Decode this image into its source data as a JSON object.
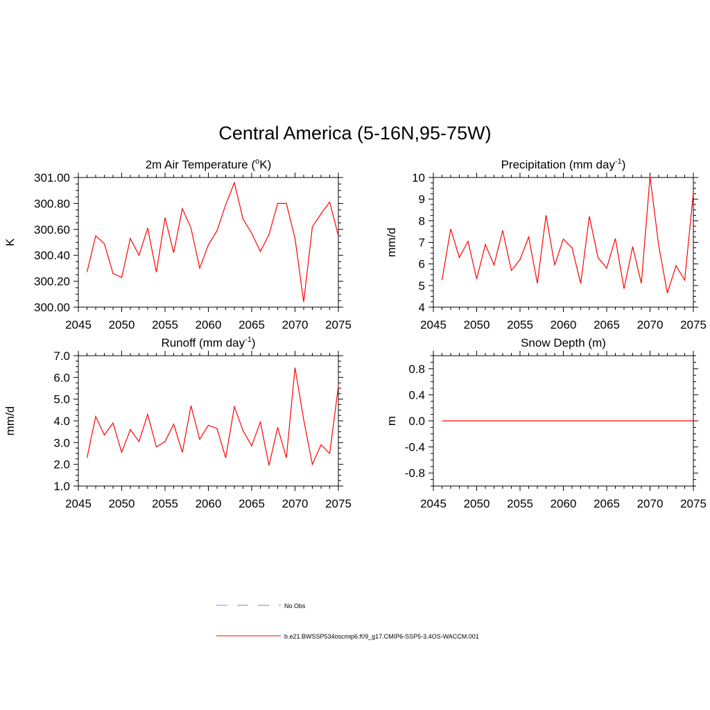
{
  "figure_title": "Central America (5-16N,95-75W)",
  "colors": {
    "model_line": "#ff0000",
    "obs_line": "#9999dd",
    "axis": "#000000"
  },
  "legend": [
    {
      "label": "No Obs",
      "style": "dashed",
      "color": "#9999dd"
    },
    {
      "label": "b.e21.BWSSP534oscmip6.f09_g17.CMIP6-SSP5-3.4OS-WACCM.001",
      "style": "solid",
      "color": "#ff0000"
    }
  ],
  "chart_data": [
    {
      "type": "line",
      "title": "2m Air Temperature",
      "title_unit": "(",
      "title_sup": "o",
      "title_tail": "K)",
      "xlabel": "",
      "ylabel": "K",
      "xlim": [
        2045,
        2075
      ],
      "ylim": [
        300.0,
        301.0
      ],
      "x_ticks": [
        2045,
        2050,
        2055,
        2060,
        2065,
        2070,
        2075
      ],
      "y_ticks": [
        300.0,
        300.2,
        300.4,
        300.6,
        300.8,
        301.0
      ],
      "y_tick_labels": [
        "300.00",
        "300.20",
        "300.40",
        "300.60",
        "300.80",
        "301.00"
      ],
      "x": [
        2046,
        2047,
        2048,
        2049,
        2050,
        2051,
        2052,
        2053,
        2054,
        2055,
        2056,
        2057,
        2058,
        2059,
        2060,
        2061,
        2062,
        2063,
        2064,
        2065,
        2066,
        2067,
        2068,
        2069,
        2070,
        2071,
        2072,
        2073,
        2074,
        2075
      ],
      "series": [
        {
          "name": "b.e21.BWSSP534oscmip6.f09_g17.CMIP6-SSP5-3.4OS-WACCM.001",
          "values": [
            300.27,
            300.55,
            300.49,
            300.26,
            300.23,
            300.53,
            300.4,
            300.61,
            300.27,
            300.69,
            300.42,
            300.76,
            300.61,
            300.3,
            300.48,
            300.59,
            300.79,
            300.96,
            300.68,
            300.57,
            300.43,
            300.56,
            300.8,
            300.8,
            300.53,
            300.04,
            300.62,
            300.72,
            300.81,
            300.55
          ]
        }
      ]
    },
    {
      "type": "line",
      "title": "Precipitation",
      "title_unit": "(mm day",
      "title_sup": "-1",
      "title_tail": ")",
      "xlabel": "",
      "ylabel": "mm/d",
      "xlim": [
        2045,
        2075
      ],
      "ylim": [
        4,
        10
      ],
      "x_ticks": [
        2045,
        2050,
        2055,
        2060,
        2065,
        2070,
        2075
      ],
      "y_ticks": [
        4,
        5,
        6,
        7,
        8,
        9,
        10
      ],
      "y_tick_labels": [
        "4",
        "5",
        "6",
        "7",
        "8",
        "9",
        "10"
      ],
      "x": [
        2046,
        2047,
        2048,
        2049,
        2050,
        2051,
        2052,
        2053,
        2054,
        2055,
        2056,
        2057,
        2058,
        2059,
        2060,
        2061,
        2062,
        2063,
        2064,
        2065,
        2066,
        2067,
        2068,
        2069,
        2070,
        2071,
        2072,
        2073,
        2074,
        2075
      ],
      "series": [
        {
          "name": "b.e21.BWSSP534oscmip6.f09_g17.CMIP6-SSP5-3.4OS-WACCM.001",
          "values": [
            5.25,
            7.62,
            6.3,
            7.05,
            5.3,
            6.9,
            5.95,
            7.55,
            5.7,
            6.2,
            7.25,
            5.1,
            8.25,
            5.95,
            7.15,
            6.75,
            5.1,
            8.2,
            6.3,
            5.8,
            7.18,
            4.85,
            6.8,
            5.1,
            10.05,
            6.85,
            4.65,
            5.92,
            5.25,
            9.3
          ]
        }
      ]
    },
    {
      "type": "line",
      "title": "Runoff",
      "title_unit": "(mm day",
      "title_sup": "-1",
      "title_tail": ")",
      "xlabel": "",
      "ylabel": "mm/d",
      "xlim": [
        2045,
        2075
      ],
      "ylim": [
        1.0,
        7.0
      ],
      "x_ticks": [
        2045,
        2050,
        2055,
        2060,
        2065,
        2070,
        2075
      ],
      "y_ticks": [
        1,
        2,
        3,
        4,
        5,
        6,
        7
      ],
      "y_tick_labels": [
        "1.0",
        "2.0",
        "3.0",
        "4.0",
        "5.0",
        "6.0",
        "7.0"
      ],
      "x": [
        2046,
        2047,
        2048,
        2049,
        2050,
        2051,
        2052,
        2053,
        2054,
        2055,
        2056,
        2057,
        2058,
        2059,
        2060,
        2061,
        2062,
        2063,
        2064,
        2065,
        2066,
        2067,
        2068,
        2069,
        2070,
        2071,
        2072,
        2073,
        2074,
        2075
      ],
      "series": [
        {
          "name": "b.e21.BWSSP534oscmip6.f09_g17.CMIP6-SSP5-3.4OS-WACCM.001",
          "values": [
            2.3,
            4.2,
            3.35,
            3.9,
            2.55,
            3.6,
            3.05,
            4.3,
            2.8,
            3.05,
            3.85,
            2.55,
            4.7,
            3.15,
            3.8,
            3.65,
            2.3,
            4.65,
            3.55,
            2.85,
            3.95,
            1.95,
            3.7,
            2.3,
            6.45,
            4.05,
            2.0,
            2.9,
            2.5,
            5.6
          ]
        }
      ]
    },
    {
      "type": "line",
      "title": "Snow Depth (m)",
      "title_unit": "",
      "title_sup": "",
      "title_tail": "",
      "xlabel": "",
      "ylabel": "m",
      "xlim": [
        2045,
        2075
      ],
      "ylim": [
        -1.0,
        1.0
      ],
      "x_ticks": [
        2045,
        2050,
        2055,
        2060,
        2065,
        2070,
        2075
      ],
      "y_ticks": [
        -0.8,
        -0.4,
        0.0,
        0.4,
        0.8
      ],
      "y_tick_labels": [
        "-0.8",
        "-0.4",
        "0.0",
        "0.4",
        "0.8"
      ],
      "x": [
        2046,
        2047,
        2048,
        2049,
        2050,
        2051,
        2052,
        2053,
        2054,
        2055,
        2056,
        2057,
        2058,
        2059,
        2060,
        2061,
        2062,
        2063,
        2064,
        2065,
        2066,
        2067,
        2068,
        2069,
        2070,
        2071,
        2072,
        2073,
        2074,
        2075
      ],
      "series": [
        {
          "name": "b.e21.BWSSP534oscmip6.f09_g17.CMIP6-SSP5-3.4OS-WACCM.001",
          "values": [
            0,
            0,
            0,
            0,
            0,
            0,
            0,
            0,
            0,
            0,
            0,
            0,
            0,
            0,
            0,
            0,
            0,
            0,
            0,
            0,
            0,
            0,
            0,
            0,
            0,
            0,
            0,
            0,
            0,
            0
          ]
        }
      ]
    }
  ]
}
